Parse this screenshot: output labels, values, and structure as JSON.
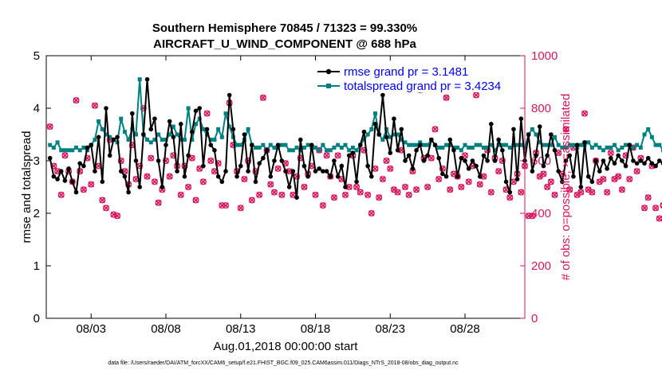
{
  "chart_data": {
    "type": "line",
    "title_line1": "Southern Hemisphere 70845 / 71323 = 99.330%",
    "title_line2": "AIRCRAFT_U_WIND_COMPONENT @ 688 hPa",
    "xlabel": "Aug.01,2018 00:00:00 start",
    "ylabel_left": "rmse and totalspread",
    "ylabel_right": "# of obs: o=possible; ×=assimilated",
    "xlim": [
      0,
      32
    ],
    "ylim_left": [
      0,
      5
    ],
    "ylim_right": [
      0,
      1000
    ],
    "x_ticks": [
      {
        "x": 3,
        "label": "08/03"
      },
      {
        "x": 8,
        "label": "08/08"
      },
      {
        "x": 13,
        "label": "08/13"
      },
      {
        "x": 18,
        "label": "08/18"
      },
      {
        "x": 23,
        "label": "08/23"
      },
      {
        "x": 28,
        "label": "08/28"
      }
    ],
    "y_ticks_left": [
      0,
      1,
      2,
      3,
      4,
      5
    ],
    "y_ticks_right": [
      0,
      200,
      400,
      600,
      800,
      1000
    ],
    "legend": [
      {
        "name": "rmse grand pr = 3.1481",
        "color": "#000000"
      },
      {
        "name": "totalspread grand pr = 3.4234",
        "color": "#008080"
      }
    ],
    "colors": {
      "rmse": "#000000",
      "spread": "#008080",
      "obs": "#d6175e",
      "axis": "#000000"
    },
    "series": [
      {
        "name": "rmse",
        "axis": "left",
        "x_start": 0.25,
        "x_step": 0.25,
        "values": [
          3.05,
          2.7,
          2.65,
          2.8,
          2.62,
          2.85,
          2.6,
          2.4,
          2.95,
          2.9,
          3.25,
          3.3,
          2.8,
          3.45,
          2.6,
          4.0,
          3.1,
          3.4,
          3.45,
          2.8,
          2.7,
          2.4,
          3.9,
          3.0,
          2.5,
          3.5,
          4.55,
          3.6,
          3.8,
          3.0,
          2.5,
          3.3,
          3.75,
          3.45,
          2.8,
          3.7,
          2.7,
          3.1,
          3.55,
          3.95,
          4.0,
          2.9,
          3.6,
          3.3,
          3.2,
          2.7,
          2.6,
          2.8,
          4.25,
          3.6,
          2.7,
          2.9,
          3.5,
          2.8,
          3.3,
          2.6,
          2.95,
          3.05,
          3.2,
          2.7,
          3.0,
          3.3,
          3.0,
          2.8,
          2.5,
          2.8,
          2.3,
          3.4,
          2.9,
          2.7,
          3.3,
          2.8,
          2.85,
          2.8,
          2.8,
          2.7,
          3.0,
          2.7,
          2.9,
          2.5,
          3.1,
          3.15,
          2.6,
          3.3,
          3.55,
          2.9,
          2.7,
          3.7,
          3.5,
          4.25,
          3.45,
          3.15,
          3.8,
          3.2,
          3.6,
          3.0,
          3.1,
          2.85,
          3.2,
          3.3,
          3.0,
          3.1,
          3.4,
          3.3,
          3.05,
          2.75,
          2.7,
          3.4,
          3.2,
          2.7,
          3.05,
          3.0,
          2.85,
          3.0,
          2.9,
          2.7,
          3.1,
          3.0,
          3.7,
          3.0,
          3.4,
          3.2,
          2.6,
          2.4,
          3.6,
          2.65,
          3.8,
          3.0,
          3.5,
          2.8,
          3.1,
          3.65,
          2.9,
          3.1,
          3.5,
          3.2,
          2.8,
          2.6,
          3.0,
          3.1,
          2.7,
          3.3,
          2.5,
          3.35,
          2.7,
          2.6,
          3.0,
          2.8,
          3.0,
          2.85,
          3.05,
          2.95,
          3.1,
          3.0,
          2.9,
          3.3,
          3.0,
          2.95,
          3.0,
          2.95,
          3.05,
          2.95,
          2.9,
          3.0,
          2.95,
          3.0,
          2.95,
          2.9
        ]
      },
      {
        "name": "totalspread",
        "axis": "left",
        "x_start": 0.25,
        "x_step": 0.25,
        "values": [
          3.3,
          3.25,
          3.35,
          3.2,
          3.2,
          3.2,
          3.2,
          3.25,
          3.2,
          3.25,
          3.2,
          3.3,
          3.4,
          3.75,
          3.6,
          3.5,
          3.45,
          3.4,
          3.35,
          3.8,
          3.55,
          3.4,
          3.6,
          3.5,
          4.55,
          3.5,
          3.4,
          3.35,
          3.4,
          3.5,
          3.4,
          3.4,
          3.5,
          3.65,
          3.5,
          3.4,
          3.4,
          4.0,
          3.4,
          3.7,
          3.8,
          3.6,
          3.5,
          3.4,
          3.4,
          3.6,
          3.45,
          3.9,
          3.65,
          3.45,
          3.3,
          3.3,
          3.4,
          3.6,
          3.3,
          3.25,
          3.25,
          3.3,
          3.2,
          3.3,
          3.25,
          3.25,
          3.3,
          3.3,
          3.2,
          3.2,
          3.25,
          3.2,
          3.25,
          3.3,
          3.25,
          3.25,
          3.2,
          3.3,
          3.2,
          3.2,
          3.25,
          3.3,
          3.25,
          3.3,
          3.2,
          3.25,
          3.2,
          3.3,
          3.4,
          3.5,
          3.6,
          3.9,
          3.5,
          3.4,
          3.6,
          3.45,
          3.5,
          3.5,
          3.4,
          3.35,
          3.3,
          3.3,
          3.3,
          3.35,
          3.3,
          3.3,
          3.4,
          3.3,
          3.25,
          3.25,
          3.3,
          3.3,
          3.25,
          3.25,
          3.2,
          3.3,
          3.25,
          3.25,
          3.3,
          3.3,
          3.25,
          3.25,
          3.3,
          3.2,
          3.3,
          3.3,
          3.3,
          3.25,
          3.3,
          3.3,
          3.3,
          3.25,
          3.5,
          3.6,
          3.5,
          3.35,
          3.3,
          3.3,
          3.3,
          3.45,
          3.3,
          3.25,
          3.25,
          3.3,
          3.3,
          3.25,
          3.3,
          3.3,
          3.35,
          3.25,
          3.3,
          3.25,
          3.2,
          3.25,
          3.25,
          3.3,
          3.2,
          3.25,
          3.3,
          3.3,
          3.25,
          3.3,
          3.25,
          3.5,
          3.6,
          3.45,
          3.3,
          3.3,
          3.2,
          3.25,
          3.3,
          3.3,
          3.25,
          3.3,
          3.25,
          3.3
        ]
      },
      {
        "name": "obs_possible",
        "axis": "right",
        "x_start": 0.25,
        "x_step": 0.25,
        "values": [
          730,
          580,
          560,
          470,
          620,
          560,
          520,
          830,
          560,
          490,
          610,
          510,
          810,
          580,
          450,
          420,
          680,
          395,
          390,
          600,
          560,
          510,
          660,
          530,
          580,
          800,
          540,
          610,
          520,
          440,
          490,
          600,
          540,
          620,
          580,
          470,
          580,
          500,
          610,
          450,
          570,
          520,
          780,
          600,
          560,
          590,
          430,
          430,
          820,
          660,
          560,
          420,
          530,
          600,
          450,
          560,
          470,
          840,
          640,
          510,
          480,
          570,
          470,
          590,
          560,
          470,
          540,
          610,
          500,
          550,
          580,
          470,
          640,
          430,
          620,
          540,
          460,
          620,
          530,
          470,
          500,
          620,
          500,
          480,
          640,
          470,
          400,
          570,
          460,
          530,
          600,
          570,
          490,
          480,
          640,
          500,
          470,
          560,
          490,
          870,
          610,
          500,
          610,
          720,
          530,
          570,
          840,
          490,
          550,
          540,
          500,
          620,
          520,
          580,
          850,
          510,
          540,
          640,
          480,
          610,
          560,
          600,
          490,
          460,
          520,
          550,
          480,
          580,
          390,
          390,
          630,
          540,
          550,
          500,
          520,
          470,
          630,
          550,
          720,
          490,
          650,
          470,
          480,
          780,
          490,
          480,
          600,
          520,
          530,
          480,
          630,
          530,
          540,
          490,
          620,
          530,
          650,
          560,
          610,
          420,
          460,
          580,
          420,
          380,
          430,
          350,
          440,
          360,
          300,
          330,
          420,
          420,
          410,
          0
        ]
      },
      {
        "name": "obs_assimilated",
        "axis": "right",
        "x_start": 0.25,
        "x_step": 0.25,
        "values": [
          730,
          580,
          560,
          470,
          620,
          560,
          520,
          830,
          560,
          490,
          610,
          510,
          810,
          580,
          450,
          420,
          680,
          395,
          390,
          600,
          560,
          510,
          660,
          530,
          580,
          800,
          540,
          610,
          520,
          440,
          490,
          600,
          540,
          620,
          580,
          470,
          580,
          500,
          610,
          450,
          570,
          520,
          780,
          600,
          560,
          590,
          430,
          430,
          820,
          660,
          560,
          420,
          530,
          600,
          450,
          560,
          470,
          840,
          640,
          510,
          480,
          570,
          470,
          590,
          560,
          470,
          540,
          610,
          500,
          550,
          580,
          470,
          640,
          430,
          620,
          540,
          460,
          620,
          530,
          470,
          500,
          620,
          500,
          480,
          640,
          470,
          400,
          570,
          460,
          530,
          600,
          570,
          490,
          480,
          640,
          500,
          470,
          560,
          490,
          870,
          610,
          500,
          610,
          720,
          530,
          570,
          840,
          490,
          550,
          540,
          500,
          620,
          520,
          580,
          850,
          510,
          540,
          640,
          480,
          610,
          560,
          600,
          490,
          460,
          520,
          550,
          480,
          580,
          390,
          390,
          630,
          540,
          550,
          500,
          520,
          470,
          630,
          550,
          720,
          490,
          650,
          470,
          480,
          780,
          490,
          480,
          600,
          520,
          530,
          480,
          630,
          530,
          540,
          490,
          620,
          530,
          650,
          560,
          610,
          420,
          460,
          580,
          420,
          380,
          430,
          350,
          440,
          360,
          300,
          330,
          420,
          420,
          410,
          0
        ]
      }
    ]
  },
  "footer": "data file: /Users/raeder/DAI/ATM_forcXX/CAM6_setup/f.e21.FHIST_BGC.f09_025.CAM6assim.011/Diags_NTrS_2018-08/obs_diag_output.nc"
}
